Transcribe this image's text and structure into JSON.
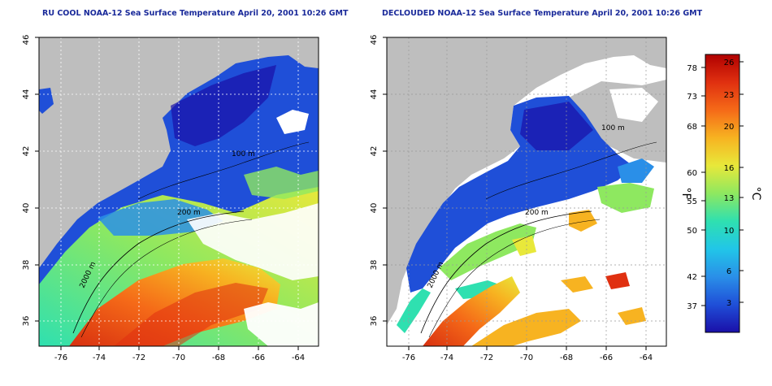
{
  "panels": [
    {
      "title": "RU COOL NOAA-12 Sea Surface Temperature April 20, 2001 10:26 GMT",
      "lon_ticks": [
        "-76",
        "-74",
        "-72",
        "-70",
        "-68",
        "-66",
        "-64"
      ],
      "lat_ticks": [
        "36",
        "38",
        "40",
        "42",
        "44",
        "46"
      ],
      "contour_labels": [
        "100 m",
        "200 m",
        "2000 m"
      ]
    },
    {
      "title": "DECLOUDED NOAA-12 Sea Surface Temperature April 20, 2001 10:26 GMT",
      "lon_ticks": [
        "-76",
        "-74",
        "-72",
        "-70",
        "-68",
        "-66",
        "-64"
      ],
      "lat_ticks": [
        "36",
        "38",
        "40",
        "42",
        "44",
        "46"
      ],
      "contour_labels": [
        "100 m",
        "200 m",
        "2000 m"
      ]
    }
  ],
  "map_extent": {
    "lon": [
      -77,
      -63
    ],
    "lat": [
      35,
      46
    ]
  },
  "colorbar": {
    "f_label": "°F",
    "c_label": "°C",
    "f_ticks": [
      "78",
      "73",
      "68",
      "60",
      "55",
      "50",
      "42",
      "37"
    ],
    "c_ticks": [
      "26",
      "23",
      "20",
      "16",
      "13",
      "10",
      "6",
      "3"
    ],
    "colors": [
      "#1a0fa8",
      "#1f4fd8",
      "#2a8fe8",
      "#21c6e8",
      "#2fe0b0",
      "#8ee860",
      "#e8e83a",
      "#f7b321",
      "#f56a18",
      "#e03010",
      "#b00000"
    ]
  },
  "colors": {
    "land": "#bebebe",
    "cloud": "#ffffff",
    "grid": "#ffffff",
    "title": "#1a2a9a"
  }
}
